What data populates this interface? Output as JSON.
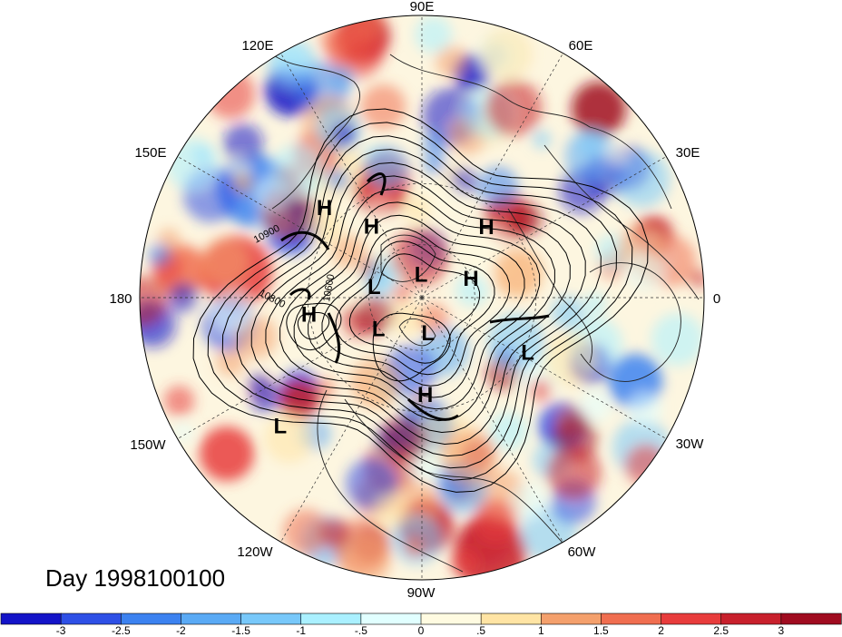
{
  "day_label": "Day 1998100100",
  "longitude_labels": {
    "lon_90e": "90E",
    "lon_60e": "60E",
    "lon_30e": "30E",
    "lon_0": "0",
    "lon_30w": "30W",
    "lon_60w": "60W",
    "lon_90w": "90W",
    "lon_120w": "120W",
    "lon_150w": "150W",
    "lon_180": "180",
    "lon_150e": "150E",
    "lon_120e": "120E"
  },
  "contour_labels": {
    "c10900": "10900",
    "c10800": "10800",
    "c10600": "10600"
  },
  "pressure_centers": [
    {
      "type": "H",
      "lon": 137,
      "lat": 22
    },
    {
      "type": "H",
      "lon": 125,
      "lat": 42
    },
    {
      "type": "H",
      "lon": 48,
      "lat": 38
    },
    {
      "type": "L",
      "lon": 166,
      "lat": 62
    },
    {
      "type": "L",
      "lon": 92,
      "lat": 76
    },
    {
      "type": "H",
      "lon": 22,
      "lat": 60
    },
    {
      "type": "H",
      "lon": 188,
      "lat": 30
    },
    {
      "type": "L",
      "lon": 215,
      "lat": 60
    },
    {
      "type": "L",
      "lon": 280,
      "lat": 70
    },
    {
      "type": "L",
      "lon": 333,
      "lat": 28
    },
    {
      "type": "H",
      "lon": 272,
      "lat": 38
    },
    {
      "type": "L",
      "lon": 222,
      "lat": 2
    }
  ],
  "colorbar": {
    "colors": [
      "#1414c8",
      "#2e50e6",
      "#3c82f0",
      "#5aaaf5",
      "#78c8fa",
      "#aaf0ff",
      "#e1ffff",
      "#fffbe1",
      "#ffe4a4",
      "#f4a06c",
      "#f06e50",
      "#e83c3c",
      "#c8202c",
      "#a00c20"
    ],
    "tick_labels": [
      "-3",
      "-2.5",
      "-2",
      "-1.5",
      "-1",
      "-.5",
      "0",
      ".5",
      "1",
      "1.5",
      "2",
      "2.5",
      "3"
    ]
  }
}
